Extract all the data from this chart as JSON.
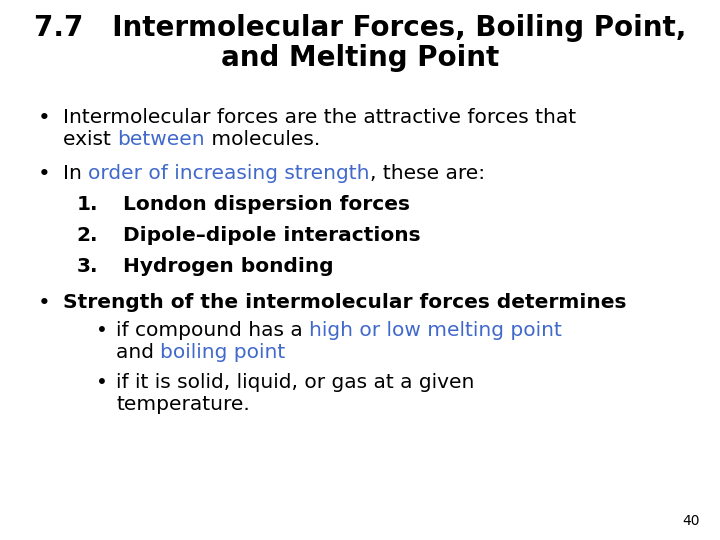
{
  "background_color": "#ffffff",
  "title_line1": "7.7   Intermolecular Forces, Boiling Point,",
  "title_line2": "and Melting Point",
  "title_color": "#000000",
  "title_fontsize": 20,
  "blue_color": "#4169cc",
  "black_color": "#000000",
  "body_fontsize": 14.5,
  "page_number": "40",
  "figsize": [
    7.2,
    5.4
  ],
  "dpi": 100
}
